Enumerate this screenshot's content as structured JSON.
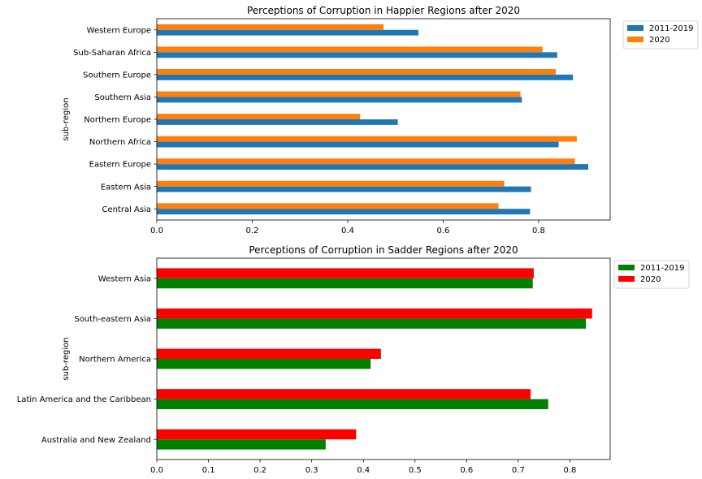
{
  "chart_data": [
    {
      "type": "bar",
      "orientation": "horizontal",
      "title": "Perceptions of Corruption in Happier Regions after 2020",
      "xlabel": "",
      "ylabel": "sub-region",
      "xlim": [
        0,
        0.95
      ],
      "xticks": [
        0.0,
        0.2,
        0.4,
        0.6,
        0.8
      ],
      "xtick_labels": [
        "0.0",
        "0.2",
        "0.4",
        "0.6",
        "0.8"
      ],
      "categories": [
        "Central Asia",
        "Eastern Asia",
        "Eastern Europe",
        "Northern Africa",
        "Northern Europe",
        "Southern Asia",
        "Southern Europe",
        "Sub-Saharan Africa",
        "Western Europe"
      ],
      "series": [
        {
          "name": "2011-2019",
          "color": "#1f77b4",
          "values": [
            0.782,
            0.784,
            0.904,
            0.842,
            0.505,
            0.765,
            0.872,
            0.839,
            0.548
          ]
        },
        {
          "name": "2020",
          "color": "#ff7f0e",
          "values": [
            0.716,
            0.728,
            0.876,
            0.88,
            0.426,
            0.762,
            0.836,
            0.808,
            0.475
          ]
        }
      ],
      "legend": "outside-top-right",
      "grid": false
    },
    {
      "type": "bar",
      "orientation": "horizontal",
      "title": "Perceptions of Corruption in Sadder Regions after 2020",
      "xlabel": "",
      "ylabel": "sub-region",
      "xlim": [
        0,
        0.878
      ],
      "xticks": [
        0.0,
        0.1,
        0.2,
        0.3,
        0.4,
        0.5,
        0.6,
        0.7,
        0.8
      ],
      "xtick_labels": [
        "0.0",
        "0.1",
        "0.2",
        "0.3",
        "0.4",
        "0.5",
        "0.6",
        "0.7",
        "0.8"
      ],
      "categories": [
        "Australia and New Zealand",
        "Latin America and the Caribbean",
        "Northern America",
        "South-eastern Asia",
        "Western Asia"
      ],
      "series": [
        {
          "name": "2011-2019",
          "color": "#008000",
          "values": [
            0.327,
            0.758,
            0.414,
            0.831,
            0.728
          ]
        },
        {
          "name": "2020",
          "color": "#ff0000",
          "values": [
            0.386,
            0.724,
            0.434,
            0.843,
            0.73
          ]
        }
      ],
      "legend": "outside-top-right",
      "grid": false
    }
  ]
}
